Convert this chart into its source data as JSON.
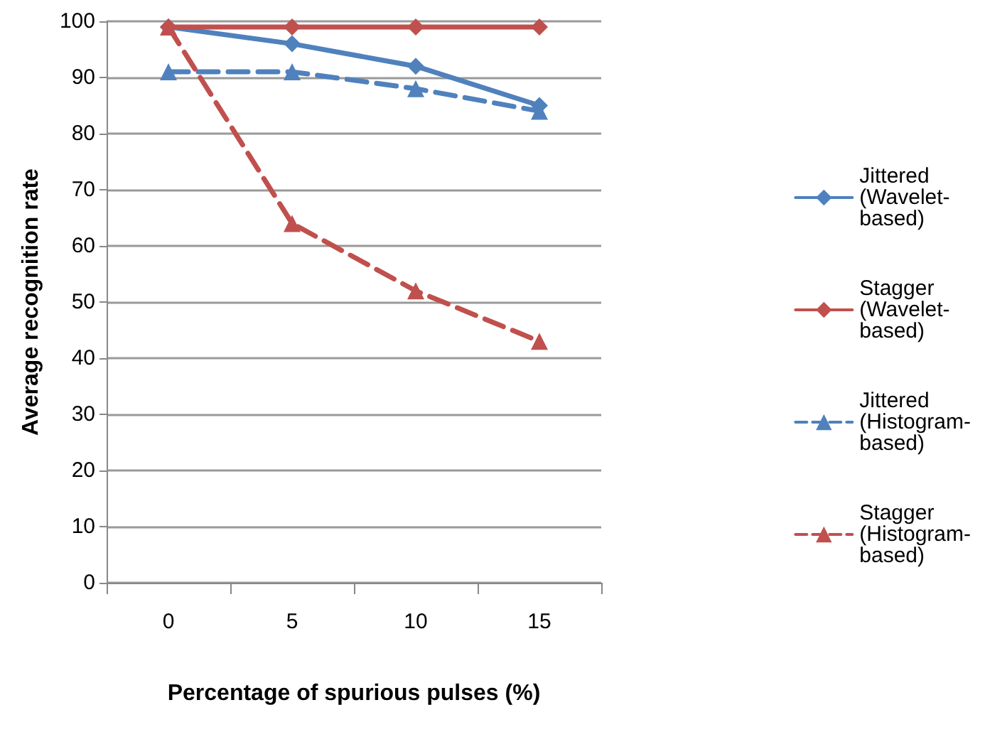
{
  "chart_data": {
    "type": "line",
    "xlabel": "Percentage of spurious pulses (%)",
    "ylabel": "Average recognition rate",
    "categories": [
      "0",
      "5",
      "10",
      "15"
    ],
    "series": [
      {
        "name": "Jittered (Wavelet-based)",
        "color": "#4f81bd",
        "values": [
          99,
          96,
          92,
          85
        ],
        "marker": "diamond",
        "line_style": "solid"
      },
      {
        "name": "Stagger (Wavelet-based)",
        "color": "#c0504d",
        "values": [
          99,
          99,
          99,
          99
        ],
        "marker": "diamond",
        "line_style": "solid"
      },
      {
        "name": "Jittered (Histogram-based)",
        "color": "#4f81bd",
        "values": [
          91,
          91,
          88,
          84
        ],
        "marker": "triangle",
        "line_style": "dashed"
      },
      {
        "name": "Stagger (Histogram-based)",
        "color": "#c0504d",
        "values": [
          99,
          64,
          52,
          43
        ],
        "marker": "triangle",
        "line_style": "dashed"
      }
    ],
    "ylim": [
      0,
      100
    ],
    "yticks": [
      0,
      10,
      20,
      30,
      40,
      50,
      60,
      70,
      80,
      90,
      100
    ],
    "grid": "y",
    "legend": "right"
  }
}
